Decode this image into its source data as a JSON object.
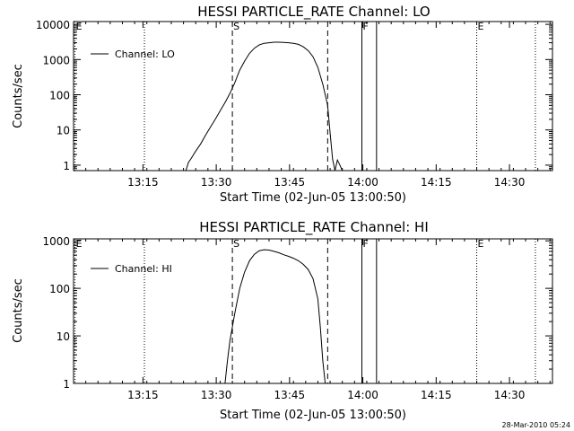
{
  "footer": {
    "timestamp": "28-Mar-2010 05:24"
  },
  "chart_data": [
    {
      "type": "line",
      "title": "HESSI PARTICLE_RATE Channel: LO",
      "xlabel": "Start Time (02-Jun-05 13:00:50)",
      "ylabel": "Counts/sec",
      "y_scale": "log",
      "ylim": [
        0.7,
        12000
      ],
      "xlim_minutes": [
        0,
        98
      ],
      "x_ticks": [
        {
          "label": "13:15",
          "minutes": 14.2
        },
        {
          "label": "13:30",
          "minutes": 29.2
        },
        {
          "label": "13:45",
          "minutes": 44.2
        },
        {
          "label": "14:00",
          "minutes": 59.2
        },
        {
          "label": "14:15",
          "minutes": 74.2
        },
        {
          "label": "14:30",
          "minutes": 89.2
        }
      ],
      "y_ticks": [
        {
          "label": "1",
          "value": 1
        },
        {
          "label": "10",
          "value": 10
        },
        {
          "label": "100",
          "value": 100
        },
        {
          "label": "1000",
          "value": 1000
        },
        {
          "label": "10000",
          "value": 10000
        }
      ],
      "grid": false,
      "legend": {
        "position": "top-left",
        "entries": [
          "Channel: LO"
        ]
      },
      "markers": [
        {
          "label": "E",
          "minutes": 0.3,
          "style": "dotted"
        },
        {
          "label": "",
          "minutes": 14.5,
          "style": "dotted"
        },
        {
          "label": "S",
          "minutes": 32.5,
          "style": "dashed"
        },
        {
          "label": "",
          "minutes": 52.0,
          "style": "dashed"
        },
        {
          "label": "F",
          "minutes": 59.0,
          "style": "solid"
        },
        {
          "label": "",
          "minutes": 62.0,
          "style": "solid"
        },
        {
          "label": "E",
          "minutes": 82.5,
          "style": "dotted"
        },
        {
          "label": "",
          "minutes": 94.5,
          "style": "dotted"
        }
      ],
      "series": [
        {
          "name": "Channel: LO",
          "x": [
            23.0,
            23.5,
            24.0,
            25.0,
            26.0,
            27.0,
            28.0,
            29.0,
            30.0,
            31.0,
            32.0,
            33.0,
            34.0,
            35.0,
            36.0,
            37.0,
            38.0,
            39.0,
            40.0,
            41.0,
            42.0,
            43.0,
            44.0,
            45.0,
            46.0,
            47.0,
            48.0,
            49.0,
            50.0,
            51.0,
            52.0,
            52.5,
            53.0,
            53.5,
            54.0,
            54.5,
            55.0
          ],
          "y": [
            0.7,
            1.2,
            1.5,
            2.5,
            4,
            7,
            12,
            20,
            35,
            60,
            110,
            220,
            500,
            900,
            1500,
            2100,
            2600,
            2900,
            3000,
            3100,
            3100,
            3050,
            3000,
            2900,
            2700,
            2300,
            1800,
            1200,
            600,
            200,
            50,
            8,
            1.5,
            0.7,
            1.4,
            1.0,
            0.7
          ]
        }
      ]
    },
    {
      "type": "line",
      "title": "HESSI PARTICLE_RATE Channel: HI",
      "xlabel": "Start Time (02-Jun-05 13:00:50)",
      "ylabel": "Counts/sec",
      "y_scale": "log",
      "ylim": [
        1,
        1100
      ],
      "xlim_minutes": [
        0,
        98
      ],
      "x_ticks": [
        {
          "label": "13:15",
          "minutes": 14.2
        },
        {
          "label": "13:30",
          "minutes": 29.2
        },
        {
          "label": "13:45",
          "minutes": 44.2
        },
        {
          "label": "14:00",
          "minutes": 59.2
        },
        {
          "label": "14:15",
          "minutes": 74.2
        },
        {
          "label": "14:30",
          "minutes": 89.2
        }
      ],
      "y_ticks": [
        {
          "label": "1",
          "value": 1
        },
        {
          "label": "10",
          "value": 10
        },
        {
          "label": "100",
          "value": 100
        },
        {
          "label": "1000",
          "value": 1000
        }
      ],
      "grid": false,
      "legend": {
        "position": "top-left",
        "entries": [
          "Channel: HI"
        ]
      },
      "markers": [
        {
          "label": "E",
          "minutes": 0.3,
          "style": "dotted"
        },
        {
          "label": "",
          "minutes": 14.5,
          "style": "dotted"
        },
        {
          "label": "S",
          "minutes": 32.5,
          "style": "dashed"
        },
        {
          "label": "",
          "minutes": 52.0,
          "style": "dashed"
        },
        {
          "label": "F",
          "minutes": 59.0,
          "style": "solid"
        },
        {
          "label": "",
          "minutes": 62.0,
          "style": "solid"
        },
        {
          "label": "E",
          "minutes": 82.5,
          "style": "dotted"
        },
        {
          "label": "",
          "minutes": 94.5,
          "style": "dotted"
        }
      ],
      "series": [
        {
          "name": "Channel: HI",
          "x": [
            31.0,
            31.5,
            32.0,
            33.0,
            34.0,
            35.0,
            36.0,
            37.0,
            38.0,
            39.0,
            40.0,
            41.0,
            42.0,
            43.0,
            44.0,
            45.0,
            46.0,
            47.0,
            48.0,
            49.0,
            50.0,
            50.5,
            51.0,
            51.5
          ],
          "y": [
            1,
            3,
            8,
            30,
            100,
            220,
            380,
            520,
            620,
            650,
            640,
            600,
            560,
            510,
            470,
            430,
            380,
            320,
            250,
            160,
            60,
            15,
            3,
            1
          ]
        }
      ]
    }
  ]
}
